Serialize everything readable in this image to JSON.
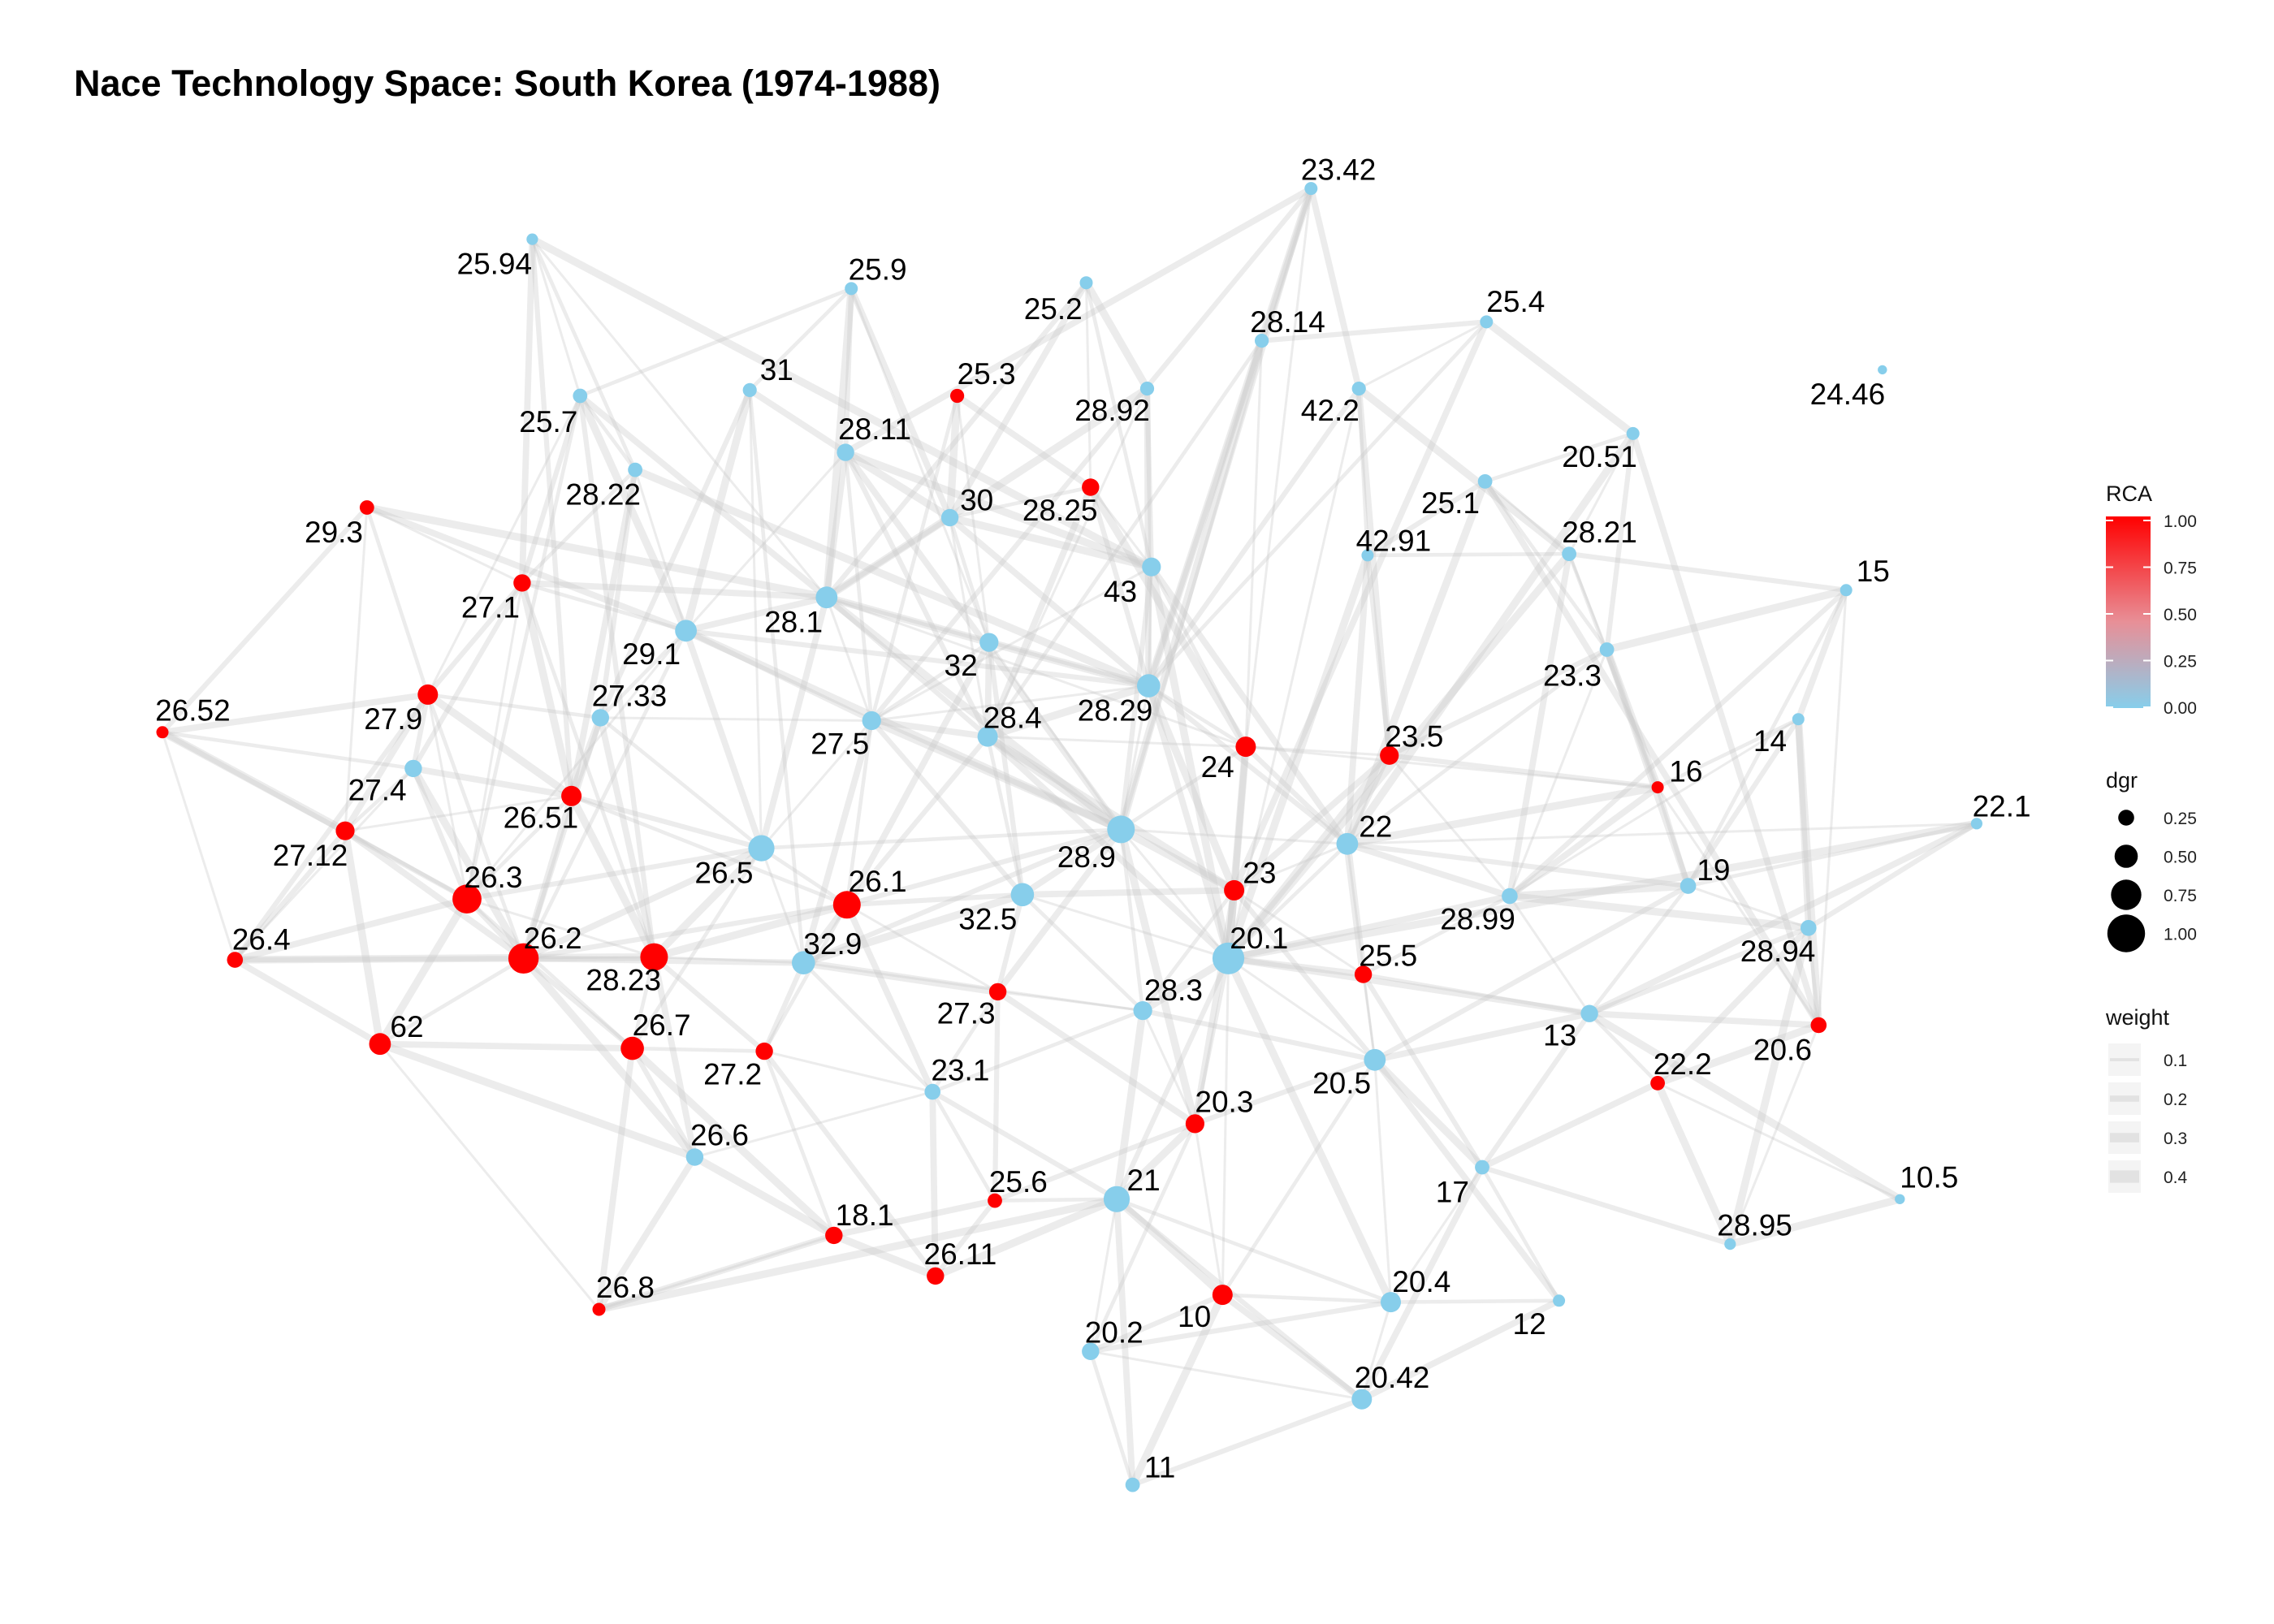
{
  "title": "Nace Technology Space: South Korea (1974-1988)",
  "colors": {
    "low": "#87ceeb",
    "high": "#ff0000",
    "edge": "#c8c8c8"
  },
  "nodes": [
    {
      "id": "23.42",
      "rca": 0,
      "dgr": 0.15
    },
    {
      "id": "25.94",
      "rca": 0,
      "dgr": 0.1
    },
    {
      "id": "25.9",
      "rca": 0,
      "dgr": 0.15
    },
    {
      "id": "25.2",
      "rca": 0,
      "dgr": 0.15
    },
    {
      "id": "25.4",
      "rca": 0,
      "dgr": 0.15
    },
    {
      "id": "28.14",
      "rca": 0,
      "dgr": 0.18
    },
    {
      "id": "31",
      "rca": 0,
      "dgr": 0.18
    },
    {
      "id": "25.3",
      "rca": 1,
      "dgr": 0.18
    },
    {
      "id": "28.92",
      "rca": 0,
      "dgr": 0.18
    },
    {
      "id": "42.2",
      "rca": 0,
      "dgr": 0.18
    },
    {
      "id": "24.46",
      "rca": 0,
      "dgr": 0.02
    },
    {
      "id": "25.7",
      "rca": 0,
      "dgr": 0.2
    },
    {
      "id": "28.11",
      "rca": 0,
      "dgr": 0.3
    },
    {
      "id": "20.51",
      "rca": 0,
      "dgr": 0.15
    },
    {
      "id": "28.22",
      "rca": 0,
      "dgr": 0.2
    },
    {
      "id": "28.25",
      "rca": 1,
      "dgr": 0.3
    },
    {
      "id": "25.1",
      "rca": 0,
      "dgr": 0.2
    },
    {
      "id": "29.3",
      "rca": 1,
      "dgr": 0.2
    },
    {
      "id": "30",
      "rca": 0,
      "dgr": 0.3
    },
    {
      "id": "42.91",
      "rca": 0,
      "dgr": 0.12
    },
    {
      "id": "28.21",
      "rca": 0,
      "dgr": 0.2
    },
    {
      "id": "43",
      "rca": 0,
      "dgr": 0.35
    },
    {
      "id": "27.1",
      "rca": 1,
      "dgr": 0.3
    },
    {
      "id": "15",
      "rca": 0,
      "dgr": 0.12
    },
    {
      "id": "28.1",
      "rca": 0,
      "dgr": 0.45
    },
    {
      "id": "29.1",
      "rca": 0,
      "dgr": 0.45
    },
    {
      "id": "32",
      "rca": 0,
      "dgr": 0.35
    },
    {
      "id": "23.3",
      "rca": 0,
      "dgr": 0.2
    },
    {
      "id": "28.29",
      "rca": 0,
      "dgr": 0.5
    },
    {
      "id": "27.9",
      "rca": 1,
      "dgr": 0.4
    },
    {
      "id": "27.33",
      "rca": 0,
      "dgr": 0.3
    },
    {
      "id": "26.52",
      "rca": 1,
      "dgr": 0.12
    },
    {
      "id": "27.5",
      "rca": 0,
      "dgr": 0.35
    },
    {
      "id": "28.4",
      "rca": 0,
      "dgr": 0.4
    },
    {
      "id": "24",
      "rca": 1,
      "dgr": 0.4
    },
    {
      "id": "23.5",
      "rca": 1,
      "dgr": 0.35
    },
    {
      "id": "14",
      "rca": 0,
      "dgr": 0.12
    },
    {
      "id": "27.4",
      "rca": 0,
      "dgr": 0.3
    },
    {
      "id": "26.51",
      "rca": 1,
      "dgr": 0.4
    },
    {
      "id": "16",
      "rca": 1,
      "dgr": 0.12
    },
    {
      "id": "22.1",
      "rca": 0,
      "dgr": 0.1
    },
    {
      "id": "27.12",
      "rca": 1,
      "dgr": 0.35
    },
    {
      "id": "28.9",
      "rca": 0,
      "dgr": 0.65
    },
    {
      "id": "22",
      "rca": 0,
      "dgr": 0.45
    },
    {
      "id": "26.5",
      "rca": 0,
      "dgr": 0.6
    },
    {
      "id": "26.3",
      "rca": 1,
      "dgr": 0.7
    },
    {
      "id": "26.1",
      "rca": 1,
      "dgr": 0.65
    },
    {
      "id": "32.5",
      "rca": 0,
      "dgr": 0.5
    },
    {
      "id": "23",
      "rca": 1,
      "dgr": 0.4
    },
    {
      "id": "19",
      "rca": 0,
      "dgr": 0.25
    },
    {
      "id": "28.99",
      "rca": 0,
      "dgr": 0.25
    },
    {
      "id": "26.4",
      "rca": 1,
      "dgr": 0.25
    },
    {
      "id": "26.2",
      "rca": 1,
      "dgr": 0.75
    },
    {
      "id": "28.23",
      "rca": 1,
      "dgr": 0.65
    },
    {
      "id": "32.9",
      "rca": 0,
      "dgr": 0.5
    },
    {
      "id": "20.1",
      "rca": 0,
      "dgr": 0.8
    },
    {
      "id": "28.94",
      "rca": 0,
      "dgr": 0.25
    },
    {
      "id": "25.5",
      "rca": 1,
      "dgr": 0.3
    },
    {
      "id": "62",
      "rca": 1,
      "dgr": 0.45
    },
    {
      "id": "26.7",
      "rca": 1,
      "dgr": 0.5
    },
    {
      "id": "27.3",
      "rca": 1,
      "dgr": 0.3
    },
    {
      "id": "28.3",
      "rca": 0,
      "dgr": 0.35
    },
    {
      "id": "20.6",
      "rca": 1,
      "dgr": 0.25
    },
    {
      "id": "13",
      "rca": 0,
      "dgr": 0.3
    },
    {
      "id": "27.2",
      "rca": 1,
      "dgr": 0.3
    },
    {
      "id": "22.2",
      "rca": 1,
      "dgr": 0.2
    },
    {
      "id": "23.1",
      "rca": 0,
      "dgr": 0.25
    },
    {
      "id": "20.5",
      "rca": 0,
      "dgr": 0.45
    },
    {
      "id": "20.3",
      "rca": 1,
      "dgr": 0.35
    },
    {
      "id": "26.6",
      "rca": 0,
      "dgr": 0.3
    },
    {
      "id": "10.5",
      "rca": 0,
      "dgr": 0.05
    },
    {
      "id": "25.6",
      "rca": 1,
      "dgr": 0.2
    },
    {
      "id": "21",
      "rca": 0,
      "dgr": 0.6
    },
    {
      "id": "17",
      "rca": 0,
      "dgr": 0.2
    },
    {
      "id": "18.1",
      "rca": 1,
      "dgr": 0.3
    },
    {
      "id": "28.95",
      "rca": 0,
      "dgr": 0.1
    },
    {
      "id": "26.11",
      "rca": 1,
      "dgr": 0.3
    },
    {
      "id": "10",
      "rca": 1,
      "dgr": 0.4
    },
    {
      "id": "20.4",
      "rca": 0,
      "dgr": 0.4
    },
    {
      "id": "12",
      "rca": 0,
      "dgr": 0.12
    },
    {
      "id": "26.8",
      "rca": 1,
      "dgr": 0.15
    },
    {
      "id": "20.2",
      "rca": 0,
      "dgr": 0.3
    },
    {
      "id": "20.42",
      "rca": 0,
      "dgr": 0.4
    },
    {
      "id": "11",
      "rca": 0,
      "dgr": 0.2
    }
  ],
  "legend": {
    "rca": {
      "title": "RCA",
      "ticks": [
        "1.00",
        "0.75",
        "0.50",
        "0.25",
        "0.00"
      ]
    },
    "dgr": {
      "title": "dgr",
      "items": [
        {
          "label": "0.25",
          "v": 0.25
        },
        {
          "label": "0.50",
          "v": 0.5
        },
        {
          "label": "0.75",
          "v": 0.75
        },
        {
          "label": "1.00",
          "v": 1.0
        }
      ]
    },
    "weight": {
      "title": "weight",
      "items": [
        {
          "label": "0.1",
          "v": 0.1
        },
        {
          "label": "0.2",
          "v": 0.2
        },
        {
          "label": "0.3",
          "v": 0.3
        },
        {
          "label": "0.4",
          "v": 0.4
        }
      ]
    }
  }
}
